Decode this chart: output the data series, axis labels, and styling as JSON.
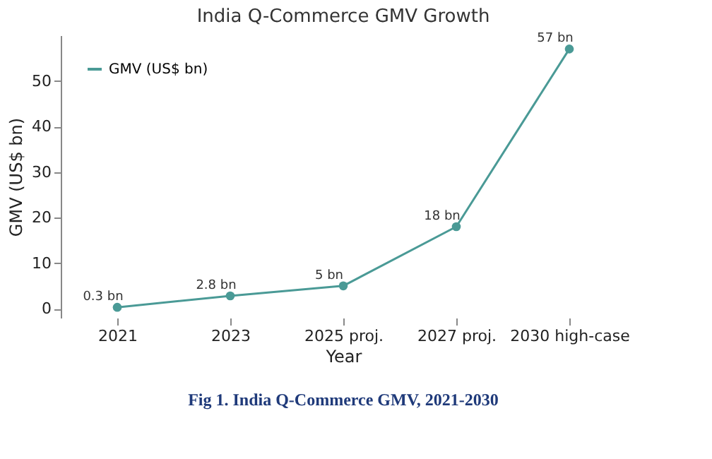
{
  "chart_data": {
    "type": "line",
    "title": "India Q-Commerce GMV Growth",
    "xlabel": "Year",
    "ylabel": "GMV (US$ bn)",
    "categories": [
      "2021",
      "2023",
      "2025 proj.",
      "2027 proj.",
      "2030 high-case"
    ],
    "series": [
      {
        "name": "GMV (US$ bn)",
        "color": "#4a9a96",
        "values": [
          0.3,
          2.8,
          5,
          18,
          57
        ],
        "value_labels": [
          "0.3 bn",
          "2.8 bn",
          "5 bn",
          "18 bn",
          "57 bn"
        ]
      }
    ],
    "ylim": [
      -2,
      60
    ],
    "yticks": [
      0,
      10,
      20,
      30,
      40,
      50
    ],
    "marker": "circle",
    "line_style": "solid",
    "grid": false,
    "legend": "top left",
    "annotations": [
      "Fig 1. India Q-Commerce GMV, 2021-2030"
    ]
  }
}
